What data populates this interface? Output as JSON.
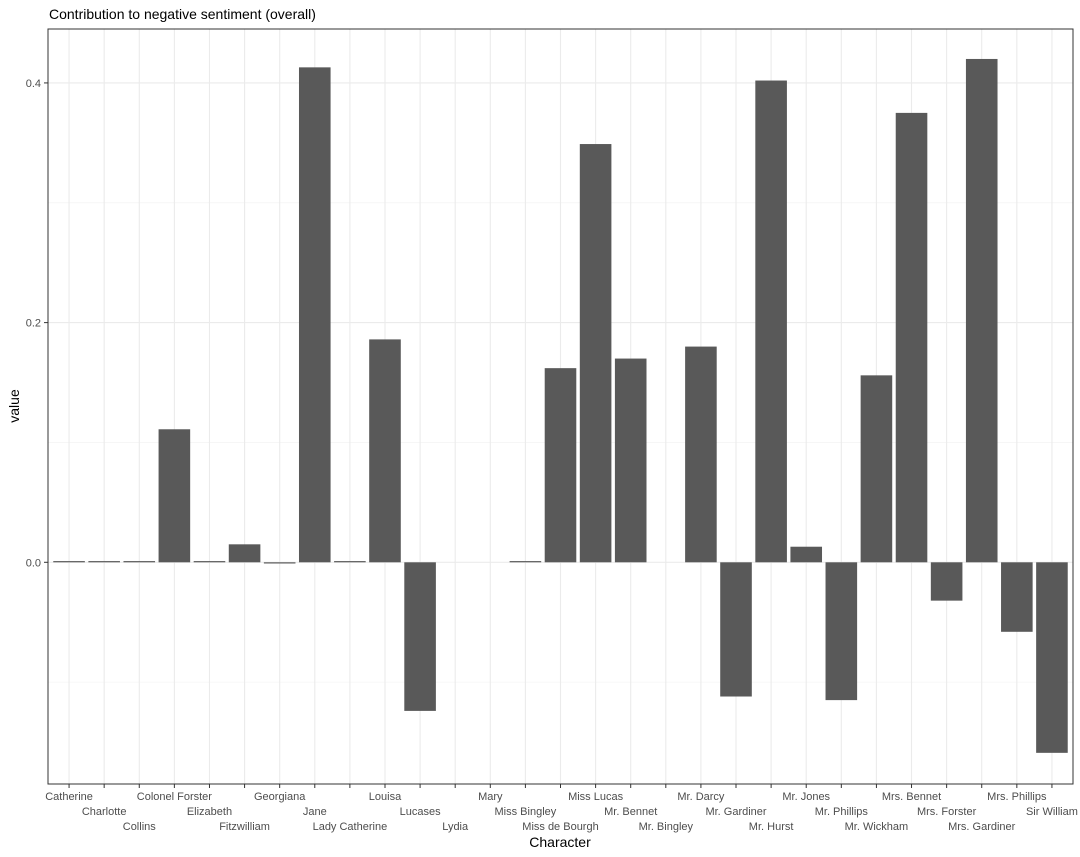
{
  "chart_data": {
    "type": "bar",
    "title": "Contribution to negative sentiment (overall)",
    "xlabel": "Character",
    "ylabel": "value",
    "ylim": [
      -0.185,
      0.445
    ],
    "yticks": [
      0.0,
      0.2,
      0.4
    ],
    "ytick_labels": [
      "0.0",
      "0.2",
      "0.4"
    ],
    "grid": true,
    "bar_color": "#595959",
    "categories": [
      "Catherine",
      "Charlotte",
      "Collins",
      "Colonel Forster",
      "Elizabeth",
      "Fitzwilliam",
      "Georgiana",
      "Jane",
      "Lady Catherine",
      "Louisa",
      "Lucases",
      "Lydia",
      "Mary",
      "Miss Bingley",
      "Miss de Bourgh",
      "Miss Lucas",
      "Mr. Bennet",
      "Mr. Bingley",
      "Mr. Darcy",
      "Mr. Gardiner",
      "Mr. Hurst",
      "Mr. Jones",
      "Mr. Phillips",
      "Mr. Wickham",
      "Mrs. Bennet",
      "Mrs. Forster",
      "Mrs. Gardiner",
      "Mrs. Phillips",
      "Sir William"
    ],
    "values": [
      0.001,
      0.001,
      0.001,
      0.111,
      0.001,
      0.015,
      -0.001,
      0.413,
      0.001,
      0.186,
      -0.124,
      0.0,
      0.0,
      0.001,
      0.162,
      0.349,
      0.17,
      0.0,
      0.18,
      -0.112,
      0.402,
      0.013,
      -0.115,
      0.156,
      0.375,
      -0.032,
      0.42,
      -0.058,
      -0.159
    ]
  }
}
